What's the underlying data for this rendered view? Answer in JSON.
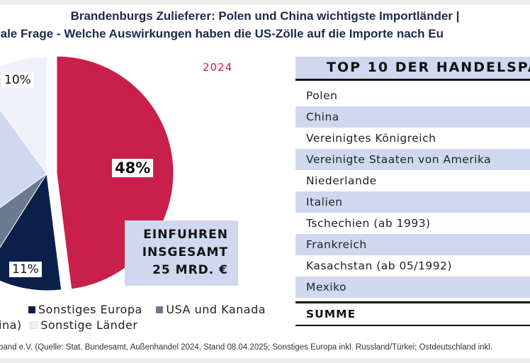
{
  "title_line1": "Brandenburgs Zulieferer: Polen und China wichtigste Importländer |",
  "title_line2": "rale Frage - Welche Auswirkungen haben die US-Zölle auf die Importe nach Eu",
  "chart_data": {
    "type": "pie",
    "title": "2024",
    "slices": [
      {
        "name": "",
        "value": 48,
        "label": "48%",
        "color": "#c8204a",
        "exploded": true
      },
      {
        "name": "Sonstiges Europa",
        "value": 11,
        "label": "11%",
        "color": "#0b1f4b"
      },
      {
        "name": "USA und Kanada",
        "value": 6,
        "label": "",
        "color": "#6b7a90"
      },
      {
        "name": "ina)",
        "value": 25,
        "label": "",
        "color": "#cfd8ee"
      },
      {
        "name": "Sonstige Länder",
        "value": 10,
        "label": "10%",
        "color": "#eef1f8"
      }
    ],
    "legend": [
      "Sonstiges Europa",
      "USA und Kanada",
      "ina)",
      "Sonstige Länder"
    ],
    "legend_placement": "bottom"
  },
  "total_box": {
    "line1": "EINFUHREN",
    "line2": "INSGESAMT",
    "line3": "25 MRD. €"
  },
  "table": {
    "header": "TOP 10 DER HANDELSPA",
    "rows": [
      "Polen",
      "China",
      "Vereinigtes Königreich",
      "Vereinigte Staaten von Amerika",
      "Niederlande",
      "Italien",
      "Tschechien (ab 1993)",
      "Frankreich",
      "Kasachstan (ab 05/1992)",
      "Mexiko"
    ],
    "sum_label": "SUMME"
  },
  "footer": "band e.V. (Quelle: Stat. Bundesamt, Außenhandel 2024, Stand 08.04.2025; Sonstiges Europa inkl. Russland/Türkei; Ostdeutschland inkl."
}
